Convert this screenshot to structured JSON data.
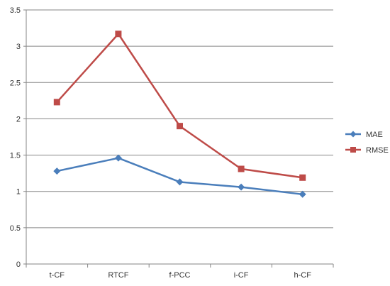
{
  "chart_data": {
    "type": "line",
    "title": "",
    "xlabel": "",
    "ylabel": "",
    "categories": [
      "t-CF",
      "RTCF",
      "f-PCC",
      "i-CF",
      "h-CF"
    ],
    "ylim": [
      0,
      3.5
    ],
    "yticks": [
      0,
      0.5,
      1,
      1.5,
      2,
      2.5,
      3,
      3.5
    ],
    "ytick_labels": [
      "0",
      "0.5",
      "1",
      "1.5",
      "2",
      "2.5",
      "3",
      "3.5"
    ],
    "grid": true,
    "legend_position": "right",
    "series": [
      {
        "name": "MAE",
        "color": "#4a7ebb",
        "marker": "diamond",
        "values": [
          1.28,
          1.46,
          1.13,
          1.06,
          0.96
        ]
      },
      {
        "name": "RMSE",
        "color": "#be4b48",
        "marker": "square",
        "values": [
          2.23,
          3.17,
          1.9,
          1.31,
          1.19
        ]
      }
    ]
  }
}
